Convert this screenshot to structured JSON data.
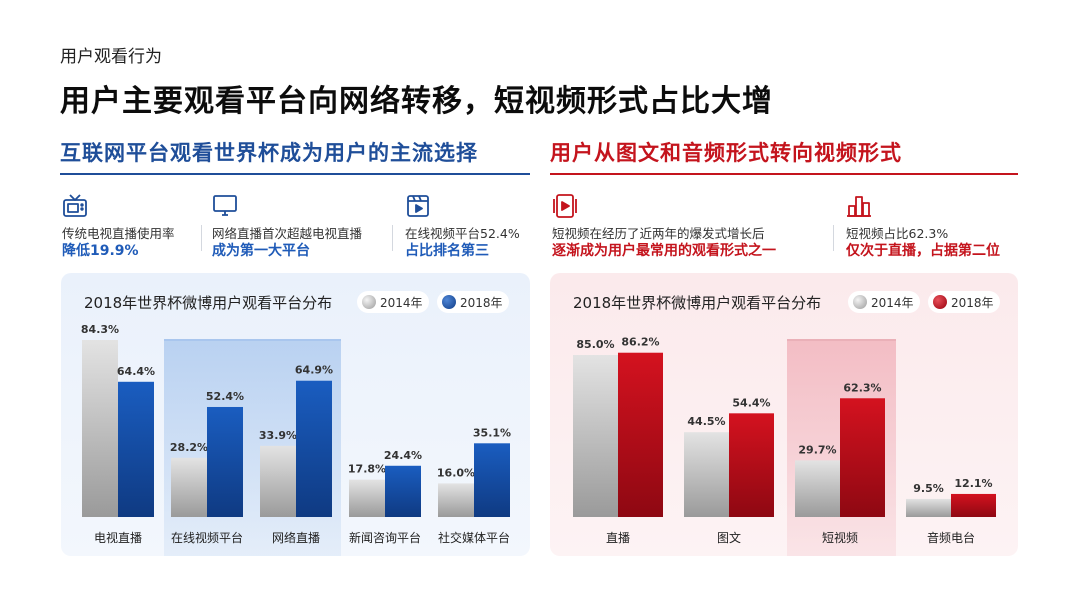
{
  "kicker": "用户观看行为",
  "headline": "用户主要观看平台向网络转移，短视频形式占比大增",
  "left": {
    "title": "互联网平台观看世界杯成为用户的主流选择",
    "stats": [
      {
        "icon": "tv-icon",
        "line1": "传统电视直播使用率",
        "line2": "降低19.9%"
      },
      {
        "icon": "monitor-icon",
        "line1": "网络直播首次超越电视直播",
        "line2": "成为第一大平台"
      },
      {
        "icon": "video-play-icon",
        "line1": "在线视频平台52.4%",
        "line2": "占比排名第三"
      }
    ],
    "chart_title": "2018年世界杯微博用户观看平台分布"
  },
  "right": {
    "title": "用户从图文和音频形式转向视频形式",
    "stats": [
      {
        "icon": "video-file-icon",
        "line1": "短视频在经历了近两年的爆发式增长后",
        "line2": "逐渐成为用户最常用的观看形式之一"
      },
      {
        "icon": "bar-chart-icon",
        "line1": "短视频占比62.3%",
        "line2": "仅次于直播，占据第二位"
      }
    ],
    "chart_title": "2018年世界杯微博用户观看平台分布"
  },
  "colors": {
    "blue": "#1f4e99",
    "red": "#c4141d",
    "bar_2014": "#c8c8c8",
    "bar_2018_blue": "#15479a",
    "bar_2018_red": "#c0101c"
  },
  "chart_data": [
    {
      "type": "bar",
      "title": "2018年世界杯微博用户观看平台分布",
      "categories": [
        "电视直播",
        "在线视频平台",
        "网络直播",
        "新闻咨询平台",
        "社交媒体平台"
      ],
      "series": [
        {
          "name": "2014年",
          "values": [
            84.3,
            28.2,
            33.9,
            17.8,
            16.0
          ],
          "labels": [
            "84.3%",
            "28.2%",
            "33.9%",
            "17.8%",
            "16.0%"
          ]
        },
        {
          "name": "2018年",
          "values": [
            64.4,
            52.4,
            64.9,
            24.4,
            35.1
          ],
          "labels": [
            "64.4%",
            "52.4%",
            "64.9%",
            "24.4%",
            "35.1%"
          ]
        }
      ],
      "ylim": [
        0,
        90
      ],
      "highlight_category": "在线视频平台",
      "legend": "top-right",
      "grid": false
    },
    {
      "type": "bar",
      "title": "2018年世界杯微博用户观看平台分布",
      "categories": [
        "直播",
        "图文",
        "短视频",
        "音频电台"
      ],
      "series": [
        {
          "name": "2014年",
          "values": [
            85.0,
            44.5,
            29.7,
            9.5
          ],
          "labels": [
            "85.0%",
            "44.5%",
            "29.7%",
            "9.5%"
          ]
        },
        {
          "name": "2018年",
          "values": [
            86.2,
            54.4,
            62.3,
            12.1
          ],
          "labels": [
            "86.2%",
            "54.4%",
            "62.3%",
            "12.1%"
          ]
        }
      ],
      "ylim": [
        0,
        90
      ],
      "highlight_category": "短视频",
      "legend": "top-right",
      "grid": false
    }
  ]
}
